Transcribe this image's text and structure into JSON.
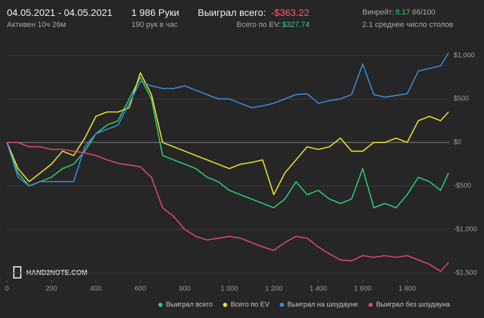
{
  "header": {
    "date_range": "04.05.2021 - 04.05.2021",
    "active": "Активен 10ч 26м",
    "hands": "1 986 Руки",
    "hands_per_hour": "190 рук в час",
    "won_label": "Выиграл всего:",
    "won_value": "-$363.22",
    "ev_label": "Всего по EV:",
    "ev_value": "$327.74",
    "winrate_label": "Винрейт:",
    "winrate_value": "8.17",
    "winrate_range": "66/100",
    "tables": "2.1 среднее число столов"
  },
  "watermark": "HAND2NOTE.COM",
  "chart_data": {
    "type": "line",
    "x": [
      0,
      50,
      100,
      150,
      200,
      250,
      300,
      350,
      400,
      450,
      500,
      550,
      600,
      650,
      700,
      750,
      800,
      850,
      900,
      950,
      1000,
      1050,
      1100,
      1150,
      1200,
      1250,
      1300,
      1350,
      1400,
      1450,
      1500,
      1550,
      1600,
      1650,
      1700,
      1750,
      1800,
      1850,
      1900,
      1950,
      1986
    ],
    "series": [
      {
        "name": "Выиграл всего",
        "color": "#2fcf7a",
        "values": [
          0,
          -350,
          -500,
          -450,
          -400,
          -300,
          -250,
          -100,
          100,
          200,
          250,
          500,
          750,
          500,
          -150,
          -200,
          -250,
          -300,
          -400,
          -450,
          -550,
          -600,
          -650,
          -700,
          -750,
          -650,
          -450,
          -600,
          -550,
          -650,
          -700,
          -650,
          -300,
          -750,
          -700,
          -750,
          -600,
          -400,
          -450,
          -550,
          -350
        ]
      },
      {
        "name": "Всего по EV",
        "color": "#f2e62c",
        "values": [
          0,
          -300,
          -450,
          -350,
          -250,
          -100,
          -150,
          50,
          300,
          350,
          350,
          400,
          800,
          550,
          0,
          -50,
          -100,
          -150,
          -200,
          -250,
          -300,
          -250,
          -230,
          -200,
          -600,
          -350,
          -200,
          -50,
          -80,
          -50,
          50,
          -100,
          -100,
          0,
          0,
          50,
          0,
          250,
          300,
          250,
          350
        ]
      },
      {
        "name": "Выиграл на шоудауне",
        "color": "#3d8ee0",
        "values": [
          0,
          -400,
          -500,
          -450,
          -450,
          -450,
          -450,
          -50,
          100,
          150,
          200,
          450,
          700,
          650,
          620,
          620,
          650,
          600,
          550,
          500,
          500,
          450,
          400,
          420,
          450,
          500,
          550,
          560,
          450,
          480,
          500,
          550,
          900,
          550,
          520,
          540,
          560,
          820,
          850,
          880,
          1030
        ]
      },
      {
        "name": "Выиграл без шоудауна",
        "color": "#e2467e",
        "values": [
          0,
          0,
          -50,
          -50,
          -80,
          -80,
          -100,
          -120,
          -150,
          -200,
          -240,
          -260,
          -280,
          -400,
          -750,
          -850,
          -1000,
          -1080,
          -1120,
          -1100,
          -1080,
          -1100,
          -1150,
          -1200,
          -1240,
          -1150,
          -1080,
          -1100,
          -1200,
          -1280,
          -1350,
          -1360,
          -1300,
          -1320,
          -1300,
          -1320,
          -1300,
          -1350,
          -1400,
          -1480,
          -1380
        ]
      }
    ],
    "xlim": [
      0,
      1990
    ],
    "ylim": [
      -1580,
      1160
    ],
    "xticks": [
      0,
      200,
      400,
      600,
      800,
      {
        "value": 1000,
        "label": "1 000"
      },
      {
        "value": 1200,
        "label": "1 200"
      },
      {
        "value": 1400,
        "label": "1 400"
      },
      {
        "value": 1600,
        "label": "1 600"
      },
      {
        "value": 1800,
        "label": "1 800"
      }
    ],
    "yticks": [
      {
        "value": -1500,
        "label": "-$1,500"
      },
      {
        "value": -1000,
        "label": "-$1,000"
      },
      {
        "value": -500,
        "label": "-$500"
      },
      {
        "value": 0,
        "label": "$0"
      },
      {
        "value": 500,
        "label": "$500"
      },
      {
        "value": 1000,
        "label": "$1,000"
      }
    ],
    "grid": true
  }
}
